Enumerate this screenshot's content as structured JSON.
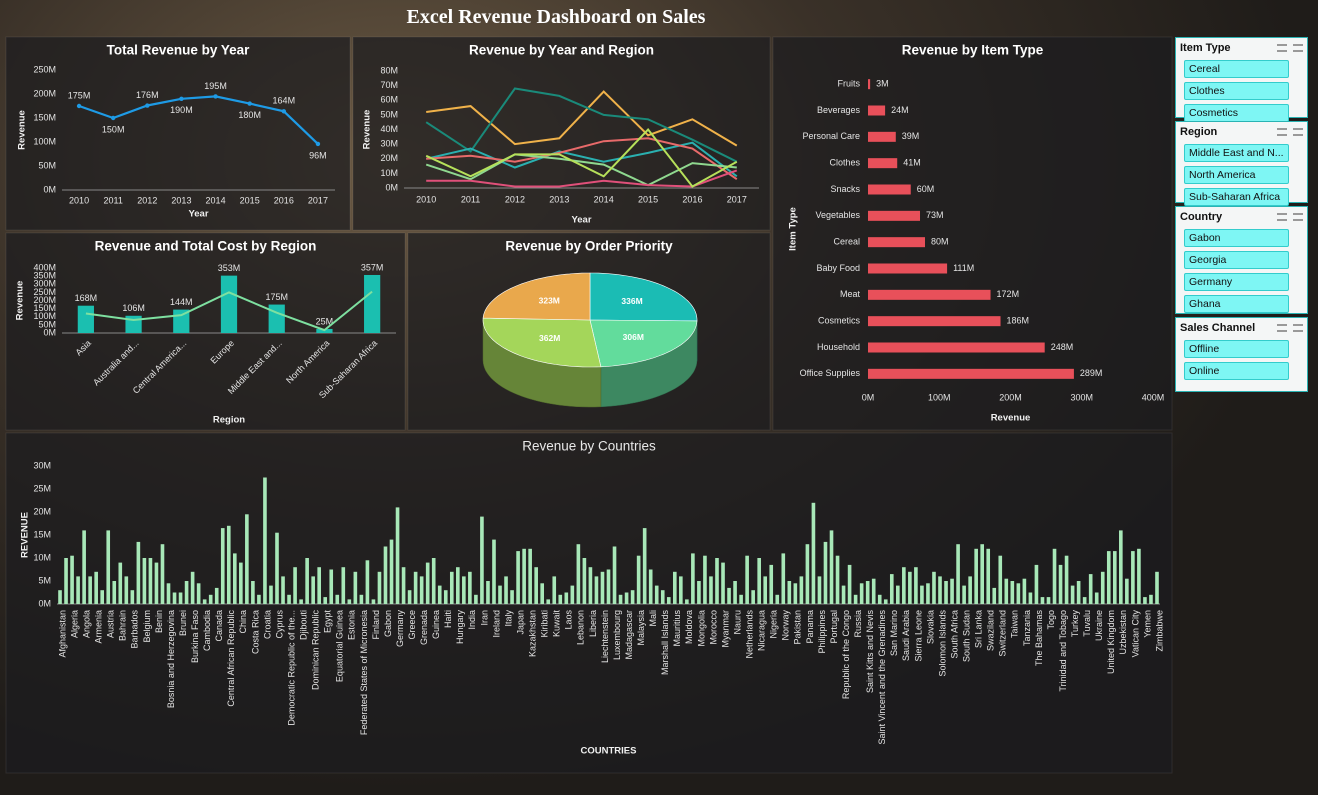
{
  "title": "Excel Revenue Dashboard on Sales",
  "chart_data": [
    {
      "type": "line",
      "title": "Total Revenue by Year",
      "ylabel": "Revenue",
      "xlabel": "Year",
      "categories": [
        2010,
        2011,
        2012,
        2013,
        2014,
        2015,
        2016,
        2017
      ],
      "values": [
        175,
        150,
        176,
        190,
        195,
        180,
        164,
        96
      ],
      "value_labels": [
        "175M",
        "150M",
        "176M",
        "190M",
        "195M",
        "180M",
        "164M",
        "96M"
      ],
      "color": "#1e9be6",
      "ylim": [
        0,
        250
      ],
      "yticks": [
        {
          "value": 0,
          "label": "0M"
        },
        {
          "value": 50,
          "label": "50M"
        },
        {
          "value": 100,
          "label": "100M"
        },
        {
          "value": 150,
          "label": "150M"
        },
        {
          "value": 200,
          "label": "200M"
        },
        {
          "value": 250,
          "label": "250M"
        }
      ],
      "grid": false
    },
    {
      "type": "line",
      "title": "Revenue by Year and Region",
      "ylabel": "Revenue",
      "xlabel": "Year",
      "categories": [
        2010,
        2011,
        2012,
        2013,
        2014,
        2015,
        2016,
        2017
      ],
      "series": [
        {
          "color": "#f0b24a",
          "values": [
            52,
            56,
            30,
            34,
            66,
            36,
            47,
            29
          ]
        },
        {
          "color": "#1a8a7a",
          "values": [
            45,
            25,
            68,
            63,
            50,
            47,
            33,
            18
          ]
        },
        {
          "color": "#2ab0b0",
          "values": [
            20,
            27,
            14,
            25,
            18,
            24,
            31,
            8
          ]
        },
        {
          "color": "#e86a6a",
          "values": [
            20,
            22,
            18,
            24,
            32,
            34,
            27,
            6
          ]
        },
        {
          "color": "#8fd88f",
          "values": [
            16,
            6,
            23,
            20,
            16,
            2,
            17,
            14
          ]
        },
        {
          "color": "#e0507a",
          "values": [
            5,
            5,
            1,
            1,
            5,
            2,
            1,
            12
          ]
        },
        {
          "color": "#b6e05a",
          "values": [
            22,
            8,
            23,
            23,
            8,
            40,
            1,
            18
          ]
        }
      ],
      "ylim": [
        0,
        80
      ],
      "yticks": [
        {
          "value": 0,
          "label": "0M"
        },
        {
          "value": 10,
          "label": "10M"
        },
        {
          "value": 20,
          "label": "20M"
        },
        {
          "value": 30,
          "label": "30M"
        },
        {
          "value": 40,
          "label": "40M"
        },
        {
          "value": 50,
          "label": "50M"
        },
        {
          "value": 60,
          "label": "60M"
        },
        {
          "value": 70,
          "label": "70M"
        },
        {
          "value": 80,
          "label": "80M"
        }
      ],
      "grid": false
    },
    {
      "type": "combo",
      "title": "Revenue and Total Cost by Region",
      "ylabel": "Revenue",
      "xlabel": "Region",
      "categories": [
        "Asia",
        "Australia and...",
        "Central America...",
        "Europe",
        "Middle East and...",
        "North America",
        "Sub-Saharan Africa"
      ],
      "series": [
        {
          "type": "bar",
          "color": "#1bbfb0",
          "values": [
            168,
            106,
            144,
            353,
            175,
            25,
            357
          ],
          "value_labels": [
            "168M",
            "106M",
            "144M",
            "353M",
            "175M",
            "25M",
            "357M"
          ]
        },
        {
          "type": "line",
          "color": "#7ee0a0",
          "values": [
            120,
            80,
            110,
            250,
            125,
            18,
            255
          ]
        }
      ],
      "ylim": [
        0,
        400
      ],
      "yticks": [
        {
          "value": 0,
          "label": "0M"
        },
        {
          "value": 50,
          "label": "50M"
        },
        {
          "value": 100,
          "label": "100M"
        },
        {
          "value": 150,
          "label": "150M"
        },
        {
          "value": 200,
          "label": "200M"
        },
        {
          "value": 250,
          "label": "250M"
        },
        {
          "value": 300,
          "label": "300M"
        },
        {
          "value": 350,
          "label": "350M"
        },
        {
          "value": 400,
          "label": "400M"
        }
      ],
      "grid": false
    },
    {
      "type": "pie",
      "title": "Revenue by Order Priority",
      "values": [
        336,
        306,
        362,
        323
      ],
      "value_labels": [
        "336M",
        "306M",
        "362M",
        "323M"
      ],
      "colors": [
        "#1bbcb4",
        "#62dc9c",
        "#a4d65a",
        "#e9a84c"
      ]
    },
    {
      "type": "bar",
      "orientation": "horizontal",
      "title": "Revenue by Item Type",
      "ylabel": "Item Type",
      "xlabel": "Revenue",
      "categories": [
        "Fruits",
        "Beverages",
        "Personal Care",
        "Clothes",
        "Snacks",
        "Vegetables",
        "Cereal",
        "Baby Food",
        "Meat",
        "Cosmetics",
        "Household",
        "Office Supplies"
      ],
      "values": [
        3,
        24,
        39,
        41,
        60,
        73,
        80,
        111,
        172,
        186,
        248,
        289
      ],
      "value_labels": [
        "3M",
        "24M",
        "39M",
        "41M",
        "60M",
        "73M",
        "80M",
        "111M",
        "172M",
        "186M",
        "248M",
        "289M"
      ],
      "color": "#e8505a",
      "xlim": [
        0,
        400
      ],
      "xticks": [
        {
          "value": 0,
          "label": "0M"
        },
        {
          "value": 100,
          "label": "100M"
        },
        {
          "value": 200,
          "label": "200M"
        },
        {
          "value": 300,
          "label": "300M"
        },
        {
          "value": 400,
          "label": "400M"
        }
      ],
      "grid": false
    },
    {
      "type": "bar",
      "title": "Revenue by Countries",
      "ylabel": "REVENUE",
      "xlabel": "COUNTRIES",
      "categories": [
        "Afghanistan",
        null,
        "Algeria",
        null,
        "Angola",
        null,
        "Armenia",
        null,
        "Austria",
        null,
        "Bahrain",
        null,
        "Barbados",
        null,
        "Belgium",
        null,
        "Benin",
        null,
        "Bosnia and Herzegovina",
        null,
        "Brunei",
        null,
        "Burkina Faso",
        null,
        "Cambodia",
        null,
        "Canada",
        null,
        "Central African Republic",
        null,
        "China",
        null,
        "Costa Rica",
        null,
        "Croatia",
        null,
        "Cyprus",
        null,
        "Democratic Republic of the...",
        null,
        "Djibouti",
        null,
        "Dominican Republic",
        null,
        "Egypt",
        null,
        "Equatorial Guinea",
        null,
        "Estonia",
        null,
        "Federated States of Micronesia",
        null,
        "Finland",
        null,
        "Gabon",
        null,
        "Germany",
        null,
        "Greece",
        null,
        "Grenada",
        null,
        "Guinea",
        null,
        "Haiti",
        null,
        "Hungary",
        null,
        "India",
        null,
        "Iran",
        null,
        "Ireland",
        null,
        "Italy",
        null,
        "Japan",
        null,
        "Kazakhstan",
        null,
        "Kiribati",
        null,
        "Kuwait",
        null,
        "Laos",
        null,
        "Lebanon",
        null,
        "Liberia",
        null,
        "Liechtenstein",
        null,
        "Luxembourg",
        null,
        "Madagascar",
        null,
        "Malaysia",
        null,
        "Mali",
        null,
        "Marshall Islands",
        null,
        "Mauritius",
        null,
        "Moldova",
        null,
        "Mongolia",
        null,
        "Morocco",
        null,
        "Myanmar",
        null,
        "Nauru",
        null,
        "Netherlands",
        null,
        "Nicaragua",
        null,
        "Nigeria",
        null,
        "Norway",
        null,
        "Pakistan",
        null,
        "Panama",
        null,
        "Philippines",
        null,
        "Portugal",
        null,
        "Republic of the Congo",
        null,
        "Russia",
        null,
        "Saint Kitts and Nevis",
        null,
        "Saint Vincent and the Grenadines",
        null,
        "San Marino",
        null,
        "Saudi Arabia",
        null,
        "Sierra Leone",
        null,
        "Slovakia",
        null,
        "Solomon Islands",
        null,
        "South Africa",
        null,
        "South Sudan",
        null,
        "Sri Lanka",
        null,
        "Swaziland",
        null,
        "Switzerland",
        null,
        "Taiwan",
        null,
        "Tanzania",
        null,
        "The Bahamas",
        null,
        "Togo",
        null,
        "Trinidad and Tobago",
        null,
        "Turkey",
        null,
        "Tuvalu",
        null,
        "Ukraine",
        null,
        "United Kingdom",
        null,
        "Uzbekistan",
        null,
        "Vatican City",
        null,
        "Yemen",
        null,
        "Zimbabwe"
      ],
      "values": [
        3,
        10,
        10.5,
        6,
        16,
        6,
        7,
        3,
        16,
        5,
        9,
        6,
        3,
        13.5,
        10,
        10,
        9,
        13,
        4.5,
        2.5,
        2.5,
        5,
        7,
        4.5,
        1,
        2,
        3.5,
        16.5,
        17,
        11,
        9,
        19.5,
        5,
        2,
        27.5,
        4,
        15.5,
        6,
        2,
        8,
        1,
        10,
        6,
        8,
        1.5,
        7.5,
        2,
        8,
        1,
        7,
        2,
        9.5,
        1,
        7,
        12.5,
        14,
        21,
        8,
        3,
        7,
        6,
        9,
        10,
        4,
        3,
        7,
        8,
        6,
        7,
        2,
        19,
        5,
        14,
        4,
        6,
        3,
        11.5,
        12,
        12,
        8,
        4.5,
        1,
        6,
        2,
        2.5,
        4,
        13,
        10,
        8,
        6,
        7,
        7.5,
        12.5,
        2,
        2.5,
        3,
        10.5,
        16.5,
        7.5,
        4,
        3,
        1.5,
        7,
        6,
        1,
        11,
        5,
        10.5,
        6,
        10,
        9,
        3.5,
        5,
        2,
        10.5,
        3,
        10,
        6,
        8.5,
        2,
        11,
        5,
        4.5,
        6,
        13,
        22,
        6,
        13.5,
        16,
        10.5,
        4,
        8.5,
        2,
        4.5,
        5,
        5.5,
        2,
        1,
        6.5,
        4,
        8,
        7,
        8,
        4,
        4.5,
        7,
        6,
        5,
        5.5,
        13,
        4,
        6,
        12,
        13,
        12,
        3.5,
        10.5,
        5.5,
        5,
        4.5,
        5.5,
        2.5,
        8.5,
        1.5,
        1.5,
        12,
        8.5,
        10.5,
        4,
        5,
        1.5,
        6.5,
        2.5,
        7,
        11.5,
        11.5,
        16,
        5.5,
        11.5,
        12,
        1.5,
        2,
        7
      ],
      "color": "#a8e8b8",
      "ylim": [
        0,
        30
      ],
      "yticks": [
        {
          "value": 0,
          "label": "0M"
        },
        {
          "value": 5,
          "label": "5M"
        },
        {
          "value": 10,
          "label": "10M"
        },
        {
          "value": 15,
          "label": "15M"
        },
        {
          "value": 20,
          "label": "20M"
        },
        {
          "value": 25,
          "label": "25M"
        },
        {
          "value": 30,
          "label": "30M"
        }
      ],
      "grid": false
    }
  ],
  "slicers": [
    {
      "title": "Item Type",
      "items": [
        "Cereal",
        "Clothes",
        "Cosmetics"
      ]
    },
    {
      "title": "Region",
      "items": [
        "Middle East and N...",
        "North America",
        "Sub-Saharan Africa"
      ]
    },
    {
      "title": "Country",
      "items": [
        "Gabon",
        "Georgia",
        "Germany",
        "Ghana"
      ]
    },
    {
      "title": "Sales Channel",
      "items": [
        "Offline",
        "Online"
      ]
    }
  ]
}
